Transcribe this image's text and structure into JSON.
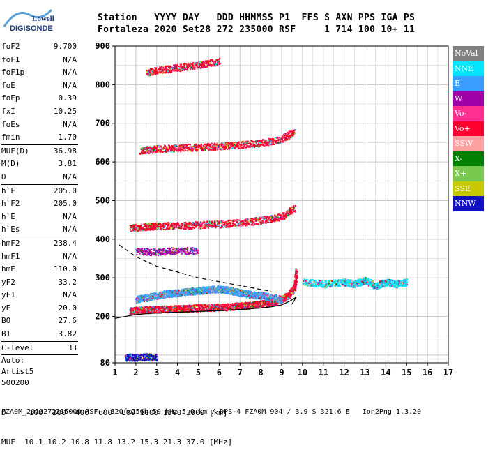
{
  "logo": {
    "line1": "Lowell",
    "line2": "DIGISONDE"
  },
  "header": {
    "labels": [
      "Station",
      "YYYY",
      "DAY",
      "DDD",
      "HHMMSS",
      "P1",
      "FFS",
      "S",
      "AXN",
      "PPS",
      "IGA",
      "PS"
    ],
    "line1": "Station   YYYY DAY   DDD HHMMSS P1  FFS S AXN PPS IGA PS",
    "line2": "Fortaleza 2020 Set28 272 235000 RSF     1 714 100 10+ 11"
  },
  "params": [
    {
      "label": "foF2",
      "value": "9.700"
    },
    {
      "label": "foF1",
      "value": "N/A"
    },
    {
      "label": "foF1p",
      "value": "N/A"
    },
    {
      "label": "foE",
      "value": "N/A"
    },
    {
      "label": "foEp",
      "value": "0.39"
    },
    {
      "label": "fxI",
      "value": "10.25"
    },
    {
      "label": "foEs",
      "value": "N/A"
    },
    {
      "label": "fmin",
      "value": "1.70"
    },
    {
      "label": "MUF(D)",
      "value": "36.98"
    },
    {
      "label": "M(D)",
      "value": "3.81"
    },
    {
      "label": "D",
      "value": "N/A"
    },
    {
      "label": "h`F",
      "value": "205.0"
    },
    {
      "label": "h`F2",
      "value": "205.0"
    },
    {
      "label": "h`E",
      "value": "N/A"
    },
    {
      "label": "h`Es",
      "value": "N/A"
    },
    {
      "label": "hmF2",
      "value": "238.4"
    },
    {
      "label": "hmF1",
      "value": "N/A"
    },
    {
      "label": "hmE",
      "value": "110.0"
    },
    {
      "label": "yF2",
      "value": "33.2"
    },
    {
      "label": "yF1",
      "value": "N/A"
    },
    {
      "label": "yE",
      "value": "20.0"
    },
    {
      "label": "B0",
      "value": "27.6"
    },
    {
      "label": "B1",
      "value": "3.82"
    },
    {
      "label": "C-level",
      "value": "33"
    }
  ],
  "autoscaler": {
    "line1": "Auto:",
    "line2": "Artist5",
    "line3": "500200"
  },
  "legend": [
    {
      "label": "NoVal",
      "color": "#808080"
    },
    {
      "label": "NNE",
      "color": "#00e5ff"
    },
    {
      "label": "E",
      "color": "#3a9dff"
    },
    {
      "label": "W",
      "color": "#a000a8"
    },
    {
      "label": "Vo-",
      "color": "#ff2e90"
    },
    {
      "label": "Vo+",
      "color": "#ff0030"
    },
    {
      "label": "SSW",
      "color": "#ffa0a0"
    },
    {
      "label": "X-",
      "color": "#008000"
    },
    {
      "label": "X+",
      "color": "#78c850"
    },
    {
      "label": "SSE",
      "color": "#c8c800"
    },
    {
      "label": "NNW",
      "color": "#1010c0"
    }
  ],
  "footer": {
    "line1": "D     100  200  400  600  800 1000 1500 3000 [km]",
    "line2": "MUF  10.1 10.2 10.8 11.8 13.2 15.3 21.3 37.0 [MHz]",
    "line3": "FZA0M_2020272235000.RSF / 320fx256h 50 kHz 5.0 km / DPS-4 FZA0M 904 / 3.9 S 321.6 E   Ion2Png 1.3.20"
  },
  "chart_data": {
    "type": "scatter",
    "xlim": [
      1,
      17
    ],
    "ylim": [
      80,
      900
    ],
    "xticks": [
      1,
      2,
      3,
      4,
      5,
      6,
      7,
      8,
      9,
      10,
      11,
      12,
      13,
      14,
      15,
      16,
      17
    ],
    "yticks": [
      80,
      200,
      300,
      400,
      500,
      600,
      700,
      800,
      900
    ],
    "grid": true,
    "series": [
      {
        "name": "Vo+",
        "note": "F2 ordinary trace",
        "x": [
          1.7,
          2,
          2.5,
          3,
          3.5,
          4,
          4.5,
          5,
          5.5,
          6,
          6.5,
          7,
          7.5,
          8,
          8.5,
          9,
          9.3,
          9.6,
          9.7
        ],
        "y": [
          215,
          217,
          218,
          219,
          220,
          221,
          222,
          223,
          224,
          225,
          226,
          228,
          230,
          233,
          237,
          245,
          255,
          275,
          320
        ]
      },
      {
        "name": "E",
        "note": "oblique spread",
        "x": [
          2,
          2.5,
          3,
          3.5,
          4,
          4.5,
          5,
          5.5,
          6,
          6.5,
          7,
          7.5,
          8,
          8.5,
          9
        ],
        "y": [
          245,
          250,
          255,
          260,
          262,
          265,
          268,
          270,
          272,
          268,
          262,
          258,
          255,
          250,
          245
        ]
      },
      {
        "name": "NNE",
        "note": "spread beyond foF2",
        "x": [
          10,
          11,
          12,
          12.5,
          13,
          13.5,
          14,
          14.5,
          15
        ],
        "y": [
          290,
          285,
          290,
          285,
          295,
          280,
          290,
          285,
          290
        ]
      },
      {
        "name": "Vo+",
        "note": "2nd hop",
        "x": [
          1.7,
          2.5,
          3,
          4,
          5,
          6,
          7,
          8,
          9,
          9.6
        ],
        "y": [
          430,
          433,
          435,
          436,
          438,
          440,
          444,
          450,
          460,
          480
        ]
      },
      {
        "name": "Vo+",
        "note": "3rd hop",
        "x": [
          2.2,
          3,
          4,
          5,
          6,
          7,
          8,
          9,
          9.6
        ],
        "y": [
          630,
          635,
          637,
          639,
          642,
          645,
          650,
          660,
          680
        ]
      },
      {
        "name": "Vo+",
        "note": "4th hop",
        "x": [
          2.5,
          3,
          4,
          5,
          6
        ],
        "y": [
          832,
          838,
          845,
          852,
          862
        ]
      },
      {
        "name": "W",
        "note": "Es-like traces",
        "x": [
          2,
          3,
          4,
          5
        ],
        "y": [
          370,
          368,
          372,
          370
        ]
      },
      {
        "name": "NNW",
        "note": "low echoes",
        "x": [
          1.5,
          2,
          2.5,
          3
        ],
        "y": [
          95,
          95,
          96,
          95
        ]
      }
    ],
    "profile": {
      "note": "model profile (solid) and extrapolation (dashed)",
      "x": [
        1.0,
        2,
        3,
        4,
        5,
        6,
        7,
        8,
        8.5,
        9,
        9.4,
        9.7,
        9.5
      ],
      "y": [
        195,
        205,
        209,
        211,
        213,
        215,
        218,
        222,
        225,
        230,
        240,
        250,
        232
      ],
      "dashed_x": [
        1.2,
        2,
        3,
        4,
        5,
        6,
        7,
        8,
        8.5
      ],
      "dashed_y": [
        385,
        355,
        330,
        315,
        300,
        290,
        280,
        270,
        265
      ]
    }
  }
}
